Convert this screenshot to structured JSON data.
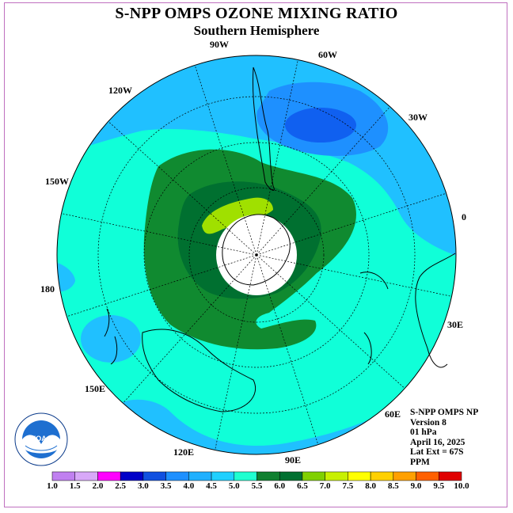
{
  "title": "S-NPP OMPS OZONE MIXING RATIO",
  "subtitle": "Southern Hemisphere",
  "longitude_labels": [
    "90W",
    "60W",
    "30W",
    "0",
    "30E",
    "60E",
    "90E",
    "120E",
    "150E",
    "180",
    "150W",
    "120W"
  ],
  "info": {
    "instrument": "S-NPP OMPS NP",
    "version": "Version 8",
    "level": "01 hPa",
    "date": "April 16, 2025",
    "lat_ext": "Lat Ext = 67S",
    "units": "PPM"
  },
  "logo_text": "NOAA",
  "colorbar": {
    "labels": [
      "1.0",
      "1.5",
      "2.0",
      "2.5",
      "3.0",
      "3.5",
      "4.0",
      "4.5",
      "5.0",
      "5.5",
      "6.0",
      "6.5",
      "7.0",
      "7.5",
      "8.0",
      "8.5",
      "9.0",
      "9.5",
      "10.0"
    ],
    "colors": [
      "#c080f0",
      "#d8a8f8",
      "#ff00ff",
      "#0000c8",
      "#1050e0",
      "#1e90ff",
      "#20b0ff",
      "#20d0ff",
      "#20ffd0",
      "#108030",
      "#007030",
      "#80d000",
      "#c8f000",
      "#ffff00",
      "#ffd000",
      "#ffa000",
      "#ff6000",
      "#e00000",
      "#806040"
    ]
  },
  "colors": {
    "cyan_bg": "#10ffd8",
    "light_blue": "#20c0ff",
    "mid_blue": "#1e90ff",
    "dark_blue": "#1060f0",
    "green_outer": "#108a30",
    "green_inner": "#007030",
    "yellow_green": "#a0e000",
    "pole_white": "#ffffff"
  }
}
